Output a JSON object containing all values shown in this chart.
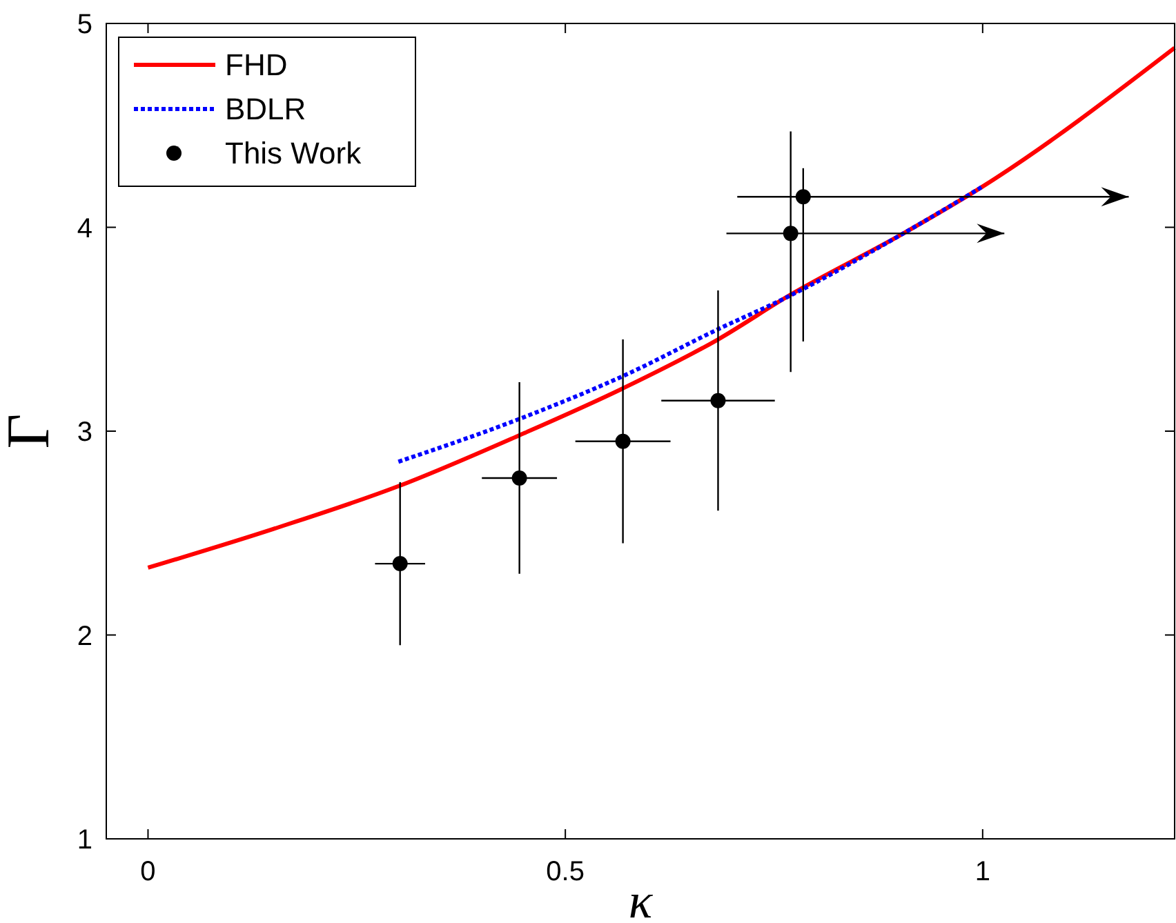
{
  "chart_data": {
    "type": "line",
    "xlabel": "κ",
    "ylabel": "Γ",
    "xlim": [
      -0.05,
      1.23
    ],
    "ylim": [
      1,
      5
    ],
    "xticks": [
      0,
      0.5,
      1
    ],
    "yticks": [
      1,
      2,
      3,
      4,
      5
    ],
    "grid": false,
    "legend": "top left",
    "series": [
      {
        "name": "FHD",
        "color": "#ff0000",
        "line_style": "solid",
        "x": [
          0,
          0.15,
          0.3,
          0.445,
          0.569,
          0.683,
          0.77,
          0.905,
          1.0,
          1.23
        ],
        "values": [
          2.33,
          2.52,
          2.73,
          2.98,
          3.21,
          3.45,
          3.67,
          3.97,
          4.2,
          4.88
        ]
      },
      {
        "name": "BDLR",
        "color": "#0000ff",
        "line_style": "dotted",
        "x": [
          0.3,
          0.445,
          0.569,
          0.683,
          0.767,
          0.905,
          1.0
        ],
        "values": [
          2.85,
          3.06,
          3.27,
          3.5,
          3.66,
          3.97,
          4.2
        ]
      },
      {
        "name": "This Work",
        "type": "scatter",
        "color": "#000000",
        "marker": "circle",
        "x": [
          0.302,
          0.445,
          0.569,
          0.683,
          0.77,
          0.785
        ],
        "values": [
          2.35,
          2.77,
          2.95,
          3.15,
          3.97,
          4.15
        ],
        "errors": [
          0.4,
          0.47,
          0.5,
          0.54,
          [
            3.29,
            4.47
          ],
          [
            3.44,
            4.29
          ]
        ],
        "xerrors": [
          0.03,
          0.045,
          0.057,
          0.068,
          [
            0.693,
            1.026
          ],
          [
            0.706,
            1.175
          ]
        ]
      }
    ]
  }
}
